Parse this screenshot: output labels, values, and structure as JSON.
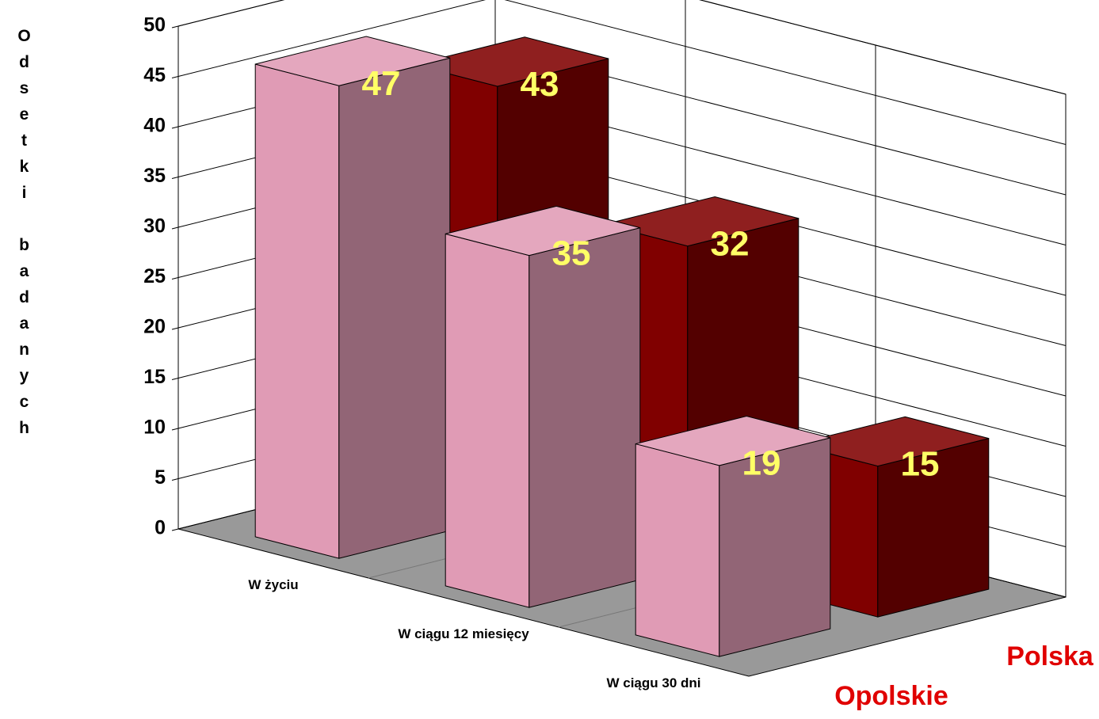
{
  "chart_data": {
    "type": "bar3d",
    "y_axis_label": "Odsetki badanych",
    "categories": [
      "W życiu",
      "W ciągu 12 miesięcy",
      "W ciągu 30 dni"
    ],
    "series": [
      {
        "name": "Opolskie",
        "color": "#e09bb5",
        "values": [
          47,
          35,
          19
        ]
      },
      {
        "name": "Polska",
        "color": "#800000",
        "values": [
          43,
          32,
          15
        ]
      }
    ],
    "ylim": [
      0,
      50
    ],
    "yticks": [
      0,
      5,
      10,
      15,
      20,
      25,
      30,
      35,
      40,
      45,
      50
    ],
    "grid": true
  }
}
